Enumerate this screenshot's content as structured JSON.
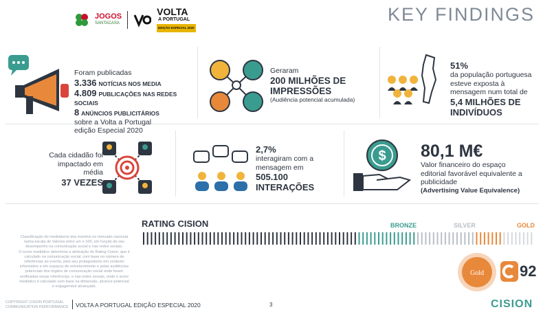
{
  "header": {
    "logo_jogos": "JOGOS",
    "logo_jogos_sub": "SANTACASA",
    "logo_volta": "VOLTA",
    "logo_volta_sub": "A PORTUGAL",
    "logo_volta_tag": "EDIÇÃO ESPECIAL 2020",
    "title": "KEY FINDINGS"
  },
  "block1": {
    "intro": "Foram publicadas",
    "line1_num": "3.336",
    "line1_txt": "NOTÍCIAS NOS MEDIA",
    "line2_num": "4.809",
    "line2_txt": "PUBLICAÇÕES NAS REDES SOCIAIS",
    "line3_num": "8",
    "line3_txt": "ANÚNCIOS PUBLICITÁRIOS",
    "outro1": "sobre a Volta a Portugal",
    "outro2": "edição Especial 2020"
  },
  "block2": {
    "intro": "Geraram",
    "big1": "200 MILHÕES DE",
    "big2": "IMPRESSÕES",
    "sub": "(Audiência potencial acumulada)"
  },
  "block3": {
    "percent": "51%",
    "l1": "da população portuguesa",
    "l2": "esteve exposta à",
    "l3": "mensagem num total de",
    "big1": "5,4 MILHÕES DE",
    "big2": "INDIVÍDUOS"
  },
  "block4": {
    "l1": "Cada cidadão foi",
    "l2": "impactado em",
    "l3": "média",
    "big": "37 VEZES"
  },
  "block5": {
    "percent": "2,7%",
    "l1": "interagiram com a",
    "l2": "mensagem em",
    "big1": "505.100",
    "big2": "INTERAÇÕES"
  },
  "block6": {
    "big": "80,1 M€",
    "l1": "Valor financeiro do espaço",
    "l2": "editorial favorável equivalente a",
    "l3": "publicidade",
    "l4": "(Advertising Value Equivalence)"
  },
  "rating": {
    "title": "RATING CISION",
    "bronze": "BRONZE",
    "silver": "SILVER",
    "gold": "GOLD",
    "badge_label": "Gold",
    "score": "92",
    "score_fraction": 0.92,
    "note": [
      "Classificação do mediatismo dos eventos no mercado nacional",
      "numa escala de Valores entre um e 100, em função do seu",
      "desempenho na comunicação social e nas redes sociais.",
      "O score mediático determina a atribuição do Rating Cision, que é",
      "calculado na comunicação social, com base no número de",
      "referências ao evento, pelo seu protagonismo em contexto",
      "informativo e em espaços de entretenimento e pelas audiências",
      "potenciais dos órgãos de comunicação social onde foram",
      "verificadas essas referências, e nas redes sociais, onde o score",
      "mediático é calculado com base na dimensão, alcance potencial",
      "e engagement alcançado."
    ]
  },
  "footer": {
    "copyright1": "COPYRIGHT CISION PORTUGAL",
    "copyright2": "COMMUNICATION PERFORMANCE",
    "event": "VOLTA A PORTUGAL EDIÇÃO ESPECIAL 2020",
    "page": "3",
    "brand": "CISION"
  },
  "colors": {
    "teal": "#3a9c8f",
    "orange": "#e8883a",
    "silver": "#b9bfc5",
    "dark": "#2d3540",
    "yellow": "#f0b43c",
    "red": "#d9453a"
  }
}
